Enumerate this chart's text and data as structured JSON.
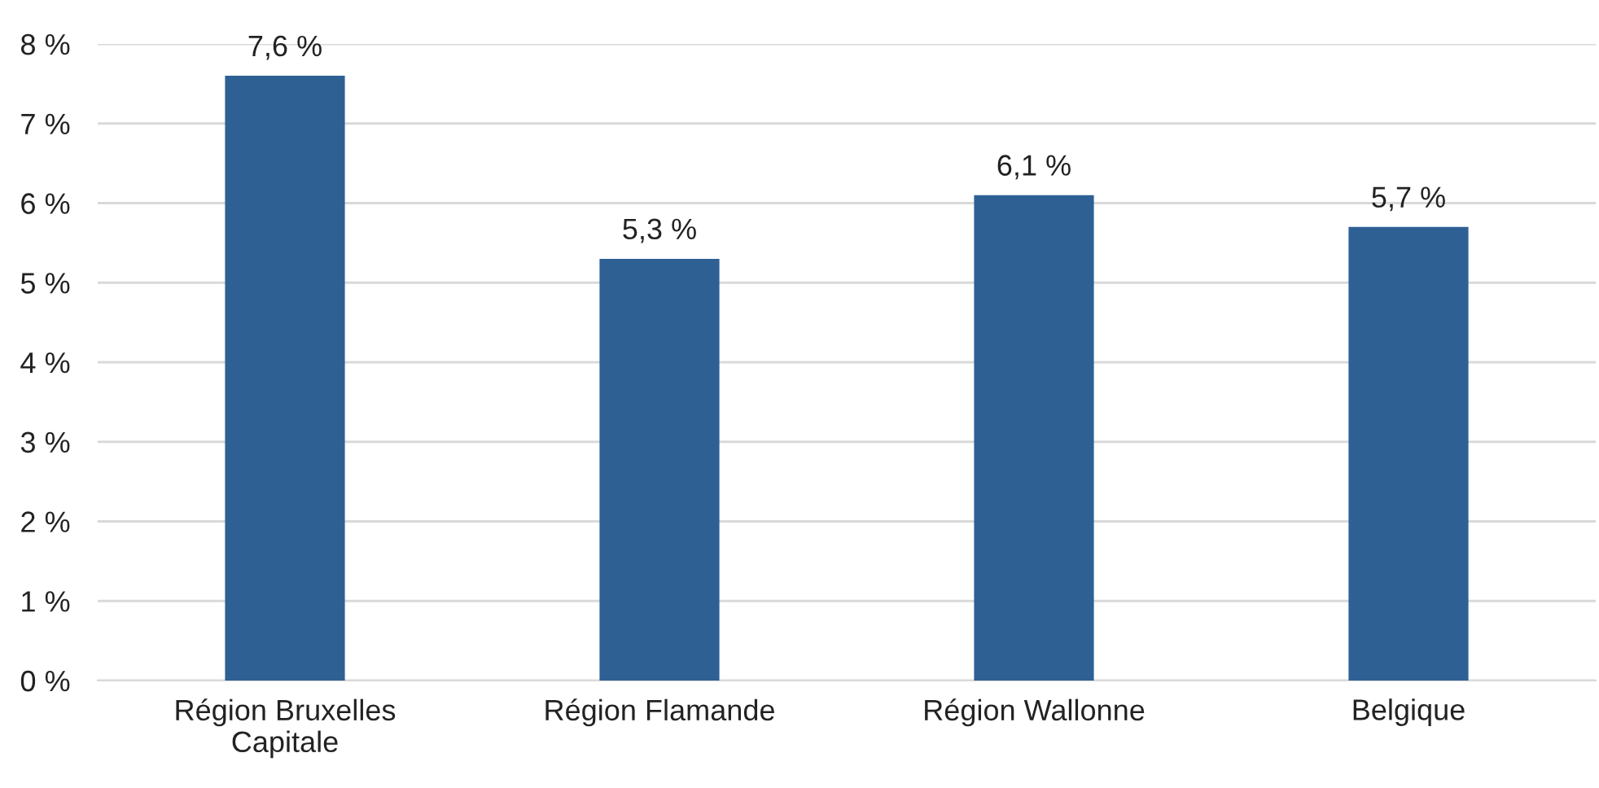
{
  "chart_data": {
    "type": "bar",
    "categories": [
      "Région Bruxelles\nCapitale",
      "Région Flamande",
      "Région Wallonne",
      "Belgique"
    ],
    "values": [
      7.6,
      5.3,
      6.1,
      5.7
    ],
    "value_labels": [
      "7,6 %",
      "5,3 %",
      "6,1 %",
      "5,7 %"
    ],
    "color": "#2e6094",
    "ylim": [
      0,
      8
    ],
    "yticks": [
      {
        "value": 0,
        "label": "0 %"
      },
      {
        "value": 1,
        "label": "1 %"
      },
      {
        "value": 2,
        "label": "2 %"
      },
      {
        "value": 3,
        "label": "3 %"
      },
      {
        "value": 4,
        "label": "4 %"
      },
      {
        "value": 5,
        "label": "5 %"
      },
      {
        "value": 6,
        "label": "6 %"
      },
      {
        "value": 7,
        "label": "7 %"
      },
      {
        "value": 8,
        "label": "8 %"
      }
    ],
    "grid": "y",
    "legend": false
  }
}
